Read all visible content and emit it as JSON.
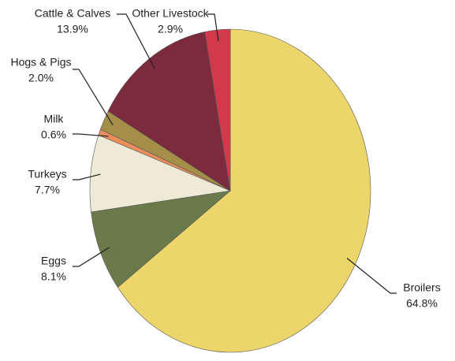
{
  "chart_data": {
    "type": "pie",
    "categories": [
      "Broilers",
      "Eggs",
      "Turkeys",
      "Milk",
      "Hogs & Pigs",
      "Cattle & Calves",
      "Other Livestock"
    ],
    "values": [
      64.8,
      8.1,
      7.7,
      0.6,
      2.0,
      13.9,
      2.9
    ],
    "value_labels": [
      "64.8%",
      "8.1%",
      "7.7%",
      "0.6%",
      "2.0%",
      "13.9%",
      "2.9%"
    ],
    "colors": [
      "#ecd66c",
      "#6b7a4a",
      "#edebd6",
      "#ea8f5c",
      "#a58f48",
      "#7b2b3b",
      "#d23a4c"
    ]
  }
}
